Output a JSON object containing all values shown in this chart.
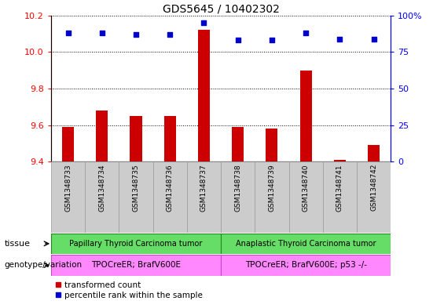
{
  "title": "GDS5645 / 10402302",
  "samples": [
    "GSM1348733",
    "GSM1348734",
    "GSM1348735",
    "GSM1348736",
    "GSM1348737",
    "GSM1348738",
    "GSM1348739",
    "GSM1348740",
    "GSM1348741",
    "GSM1348742"
  ],
  "bar_values": [
    9.59,
    9.68,
    9.65,
    9.65,
    10.12,
    9.59,
    9.58,
    9.9,
    9.41,
    9.49
  ],
  "percentile_values": [
    88,
    88,
    87,
    87,
    95,
    83,
    83,
    88,
    84,
    84
  ],
  "ylim_left": [
    9.4,
    10.2
  ],
  "ylim_right": [
    0,
    100
  ],
  "yticks_left": [
    9.4,
    9.6,
    9.8,
    10.0,
    10.2
  ],
  "yticks_right": [
    0,
    25,
    50,
    75,
    100
  ],
  "bar_color": "#cc0000",
  "dot_color": "#0000cc",
  "bar_baseline": 9.4,
  "tissue_labels": [
    "Papillary Thyroid Carcinoma tumor",
    "Anaplastic Thyroid Carcinoma tumor"
  ],
  "tissue_split": 5,
  "tissue_color": "#66dd66",
  "genotype_labels": [
    "TPOCreER; BrafV600E",
    "TPOCreER; BrafV600E; p53 -/-"
  ],
  "genotype_color": "#ff88ff",
  "legend_red_label": "transformed count",
  "legend_blue_label": "percentile rank within the sample",
  "tick_bg_color": "#cccccc",
  "title_fontsize": 10,
  "tissue_label_left": "tissue",
  "tissue_label_right": "genotype/variation"
}
